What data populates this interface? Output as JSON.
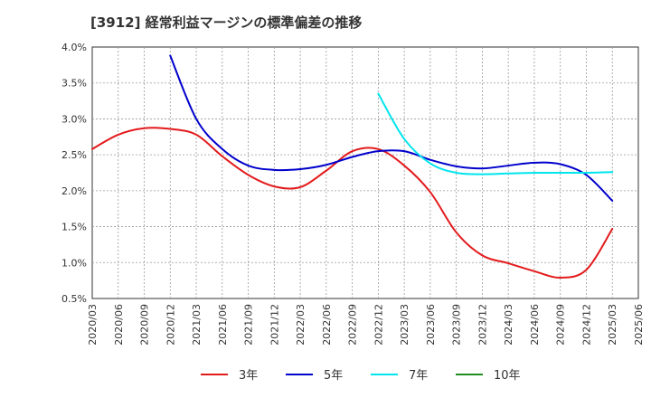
{
  "chart_data": {
    "type": "line",
    "title": "[3912]  経常利益マージンの標準偏差の推移",
    "xlabel": "",
    "ylabel": "",
    "ylim": [
      0.5,
      4.0
    ],
    "y_ticks": [
      "0.5%",
      "1.0%",
      "1.5%",
      "2.0%",
      "2.5%",
      "3.0%",
      "3.5%",
      "4.0%"
    ],
    "y_tick_values": [
      0.5,
      1.0,
      1.5,
      2.0,
      2.5,
      3.0,
      3.5,
      4.0
    ],
    "x_ticks": [
      "2020/03",
      "2020/06",
      "2020/09",
      "2020/12",
      "2021/03",
      "2021/06",
      "2021/09",
      "2021/12",
      "2022/03",
      "2022/06",
      "2022/09",
      "2022/12",
      "2023/03",
      "2023/06",
      "2023/09",
      "2023/12",
      "2024/03",
      "2024/06",
      "2024/09",
      "2024/12",
      "2025/03",
      "2025/06"
    ],
    "grid": true,
    "legend_position": "bottom",
    "series": [
      {
        "name": "3年",
        "color": "#e31a1c",
        "points": [
          [
            "2020/03",
            2.58
          ],
          [
            "2020/06",
            2.78
          ],
          [
            "2020/09",
            2.87
          ],
          [
            "2020/12",
            2.86
          ],
          [
            "2021/03",
            2.78
          ],
          [
            "2021/06",
            2.48
          ],
          [
            "2021/09",
            2.22
          ],
          [
            "2021/12",
            2.06
          ],
          [
            "2022/03",
            2.05
          ],
          [
            "2022/06",
            2.28
          ],
          [
            "2022/09",
            2.55
          ],
          [
            "2022/12",
            2.58
          ],
          [
            "2023/03",
            2.35
          ],
          [
            "2023/06",
            1.98
          ],
          [
            "2023/09",
            1.42
          ],
          [
            "2023/12",
            1.1
          ],
          [
            "2024/03",
            0.99
          ],
          [
            "2024/06",
            0.88
          ],
          [
            "2024/09",
            0.79
          ],
          [
            "2024/12",
            0.9
          ],
          [
            "2025/03",
            1.47
          ]
        ]
      },
      {
        "name": "5年",
        "color": "#0000cc",
        "points": [
          [
            "2020/12",
            3.88
          ],
          [
            "2021/03",
            3.0
          ],
          [
            "2021/06",
            2.58
          ],
          [
            "2021/09",
            2.35
          ],
          [
            "2021/12",
            2.29
          ],
          [
            "2022/03",
            2.3
          ],
          [
            "2022/06",
            2.36
          ],
          [
            "2022/09",
            2.47
          ],
          [
            "2022/12",
            2.55
          ],
          [
            "2023/03",
            2.55
          ],
          [
            "2023/06",
            2.43
          ],
          [
            "2023/09",
            2.34
          ],
          [
            "2023/12",
            2.31
          ],
          [
            "2024/03",
            2.35
          ],
          [
            "2024/06",
            2.39
          ],
          [
            "2024/09",
            2.37
          ],
          [
            "2024/12",
            2.22
          ],
          [
            "2025/03",
            1.86
          ]
        ]
      },
      {
        "name": "7年",
        "color": "#00e5ee",
        "points": [
          [
            "2022/12",
            3.35
          ],
          [
            "2023/03",
            2.72
          ],
          [
            "2023/06",
            2.38
          ],
          [
            "2023/09",
            2.25
          ],
          [
            "2023/12",
            2.23
          ],
          [
            "2024/03",
            2.24
          ],
          [
            "2024/06",
            2.25
          ],
          [
            "2024/09",
            2.25
          ],
          [
            "2024/12",
            2.25
          ],
          [
            "2025/03",
            2.26
          ]
        ]
      },
      {
        "name": "10年",
        "color": "#228b22",
        "points": []
      }
    ]
  }
}
